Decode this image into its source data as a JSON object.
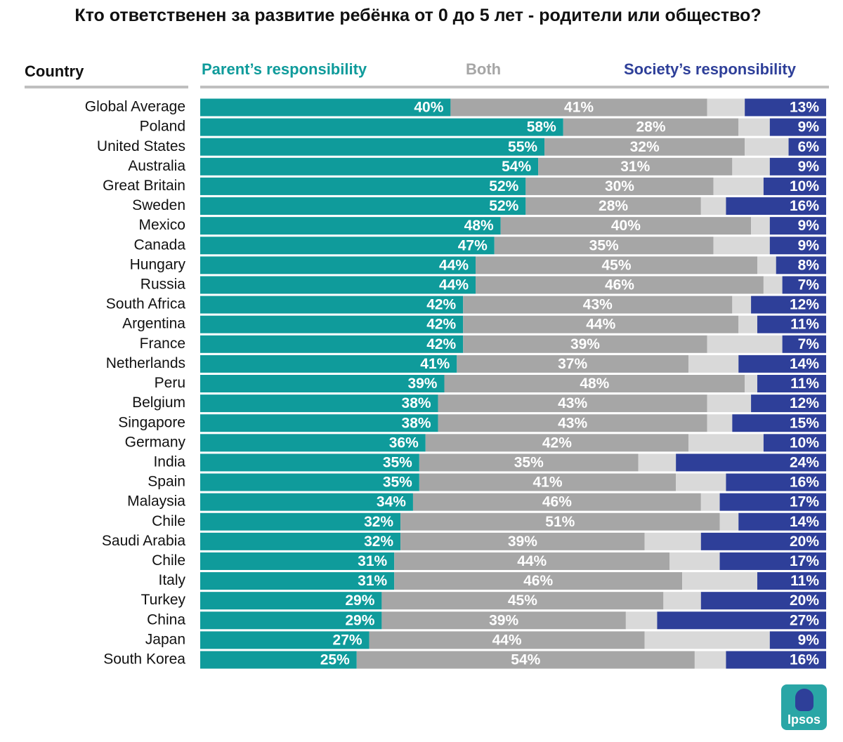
{
  "chart_data": {
    "type": "bar",
    "orientation": "horizontal",
    "stacked": true,
    "title": "Кто ответственен за развитие ребёнка от 0 до 5 лет - родители или общество?",
    "category_label": "Country",
    "categories": [
      "Global Average",
      "Poland",
      "United States",
      "Australia",
      "Great Britain",
      "Sweden",
      "Mexico",
      "Canada",
      "Hungary",
      "Russia",
      "South Africa",
      "Argentina",
      "France",
      "Netherlands",
      "Peru",
      "Belgium",
      "Singapore",
      "Germany",
      "India",
      "Spain",
      "Malaysia",
      "Chile",
      "Saudi Arabia",
      "Chile",
      "Italy",
      "Turkey",
      "China",
      "Japan",
      "South Korea"
    ],
    "series": [
      {
        "name": "Parent’s responsibility",
        "color": "#0f9b9b",
        "values": [
          40,
          58,
          55,
          54,
          52,
          52,
          48,
          47,
          44,
          44,
          42,
          42,
          42,
          41,
          39,
          38,
          38,
          36,
          35,
          35,
          34,
          32,
          32,
          31,
          31,
          29,
          29,
          27,
          25
        ],
        "value_labels": [
          "40%",
          "58%",
          "55%",
          "54%",
          "52%",
          "52%",
          "48%",
          "47%",
          "44%",
          "44%",
          "42%",
          "42%",
          "42%",
          "41%",
          "39%",
          "38%",
          "38%",
          "36%",
          "35%",
          "35%",
          "34%",
          "32%",
          "32%",
          "31%",
          "31%",
          "29%",
          "29%",
          "27%",
          "25%"
        ]
      },
      {
        "name": "Both",
        "color": "#a6a6a6",
        "values": [
          41,
          28,
          32,
          31,
          30,
          28,
          40,
          35,
          45,
          46,
          43,
          44,
          39,
          37,
          48,
          43,
          43,
          42,
          35,
          41,
          46,
          51,
          39,
          44,
          46,
          45,
          39,
          44,
          54
        ],
        "value_labels": [
          "41%",
          "28%",
          "32%",
          "31%",
          "30%",
          "28%",
          "40%",
          "35%",
          "45%",
          "46%",
          "43%",
          "44%",
          "39%",
          "37%",
          "48%",
          "43%",
          "43%",
          "42%",
          "35%",
          "41%",
          "46%",
          "51%",
          "39%",
          "44%",
          "46%",
          "45%",
          "39%",
          "44%",
          "54%"
        ]
      },
      {
        "color": "#d9d9d9",
        "values": [
          6,
          5,
          7,
          6,
          8,
          4,
          3,
          9,
          3,
          3,
          3,
          3,
          12,
          8,
          2,
          7,
          4,
          12,
          6,
          8,
          3,
          3,
          9,
          8,
          12,
          6,
          5,
          20,
          5
        ]
      },
      {
        "name": "Society’s responsibility",
        "color": "#2e3f99",
        "values": [
          13,
          9,
          6,
          9,
          10,
          16,
          9,
          9,
          8,
          7,
          12,
          11,
          7,
          14,
          11,
          12,
          15,
          10,
          24,
          16,
          17,
          14,
          20,
          17,
          11,
          20,
          27,
          9,
          16
        ],
        "value_labels": [
          "13%",
          "9%",
          "6%",
          "9%",
          "10%",
          "16%",
          "9%",
          "9%",
          "8%",
          "7%",
          "12%",
          "11%",
          "7%",
          "14%",
          "11%",
          "12%",
          "15%",
          "10%",
          "24%",
          "16%",
          "17%",
          "14%",
          "20%",
          "17%",
          "11%",
          "20%",
          "27%",
          "9%",
          "16%"
        ]
      }
    ]
  },
  "logo": "Ipsos"
}
